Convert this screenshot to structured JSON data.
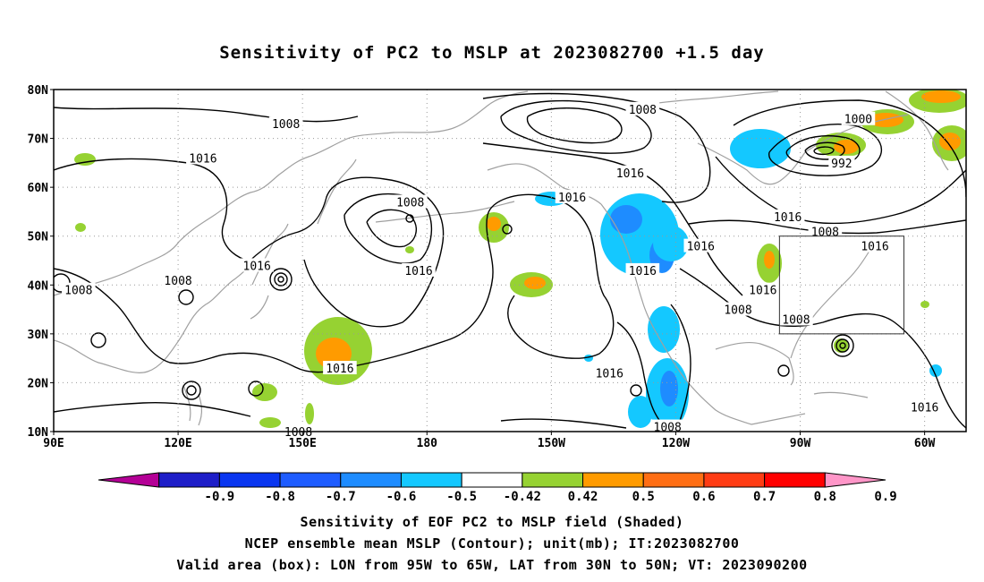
{
  "title": "Sensitivity of PC2 to MSLP at 2023082700 +1.5 day",
  "map": {
    "lat_ticks": [
      "80N",
      "70N",
      "60N",
      "50N",
      "40N",
      "30N",
      "20N",
      "10N"
    ],
    "lon_ticks": [
      "90E",
      "120E",
      "150E",
      "180",
      "150W",
      "120W",
      "90W",
      "60W"
    ],
    "lon_range": [
      90,
      310
    ],
    "lat_range": [
      10,
      80
    ],
    "grid": "dotted",
    "valid_box": {
      "lon": [
        265,
        295
      ],
      "lat": [
        30,
        50
      ]
    },
    "contour_labels": [
      {
        "text": "1008",
        "lon": 146,
        "lat": 73
      },
      {
        "text": "1016",
        "lon": 126,
        "lat": 66
      },
      {
        "text": "1008",
        "lon": 232,
        "lat": 76
      },
      {
        "text": "1000",
        "lon": 284,
        "lat": 74
      },
      {
        "text": "992",
        "lon": 280,
        "lat": 65
      },
      {
        "text": "1016",
        "lon": 229,
        "lat": 63
      },
      {
        "text": "1016",
        "lon": 215,
        "lat": 58
      },
      {
        "text": "1008",
        "lon": 176,
        "lat": 57
      },
      {
        "text": "1016",
        "lon": 267,
        "lat": 54
      },
      {
        "text": "1008",
        "lon": 276,
        "lat": 51
      },
      {
        "text": "1016",
        "lon": 288,
        "lat": 48
      },
      {
        "text": "1016",
        "lon": 139,
        "lat": 44
      },
      {
        "text": "1008",
        "lon": 120,
        "lat": 41
      },
      {
        "text": "1008",
        "lon": 96,
        "lat": 39
      },
      {
        "text": "1016",
        "lon": 178,
        "lat": 43
      },
      {
        "text": "1016",
        "lon": 246,
        "lat": 48
      },
      {
        "text": "1016",
        "lon": 232,
        "lat": 43
      },
      {
        "text": "1016",
        "lon": 261,
        "lat": 39
      },
      {
        "text": "1008",
        "lon": 255,
        "lat": 35
      },
      {
        "text": "1008",
        "lon": 269,
        "lat": 33
      },
      {
        "text": "1016",
        "lon": 159,
        "lat": 23
      },
      {
        "text": "1016",
        "lon": 224,
        "lat": 22
      },
      {
        "text": "1008",
        "lon": 238,
        "lat": 11
      },
      {
        "text": "1008",
        "lon": 149,
        "lat": 10
      },
      {
        "text": "1016",
        "lon": 300,
        "lat": 15
      }
    ],
    "colors": {
      "contour": "#000000",
      "coast": "#a0a0a0",
      "grid": "#999999"
    }
  },
  "colorbar": {
    "labels": [
      "-0.9",
      "-0.8",
      "-0.7",
      "-0.6",
      "-0.5",
      "-0.42",
      "0.42",
      "0.5",
      "0.6",
      "0.7",
      "0.8",
      "0.9"
    ],
    "colors": [
      "#b40096",
      "#1e1ec8",
      "#0a36f0",
      "#1e5cff",
      "#1e8cff",
      "#14c8ff",
      "#ffffff",
      "#96d232",
      "#ff9b00",
      "#ff6e14",
      "#ff3c14",
      "#ff0000",
      "#ff96c8"
    ]
  },
  "captions": [
    "Sensitivity of EOF PC2 to MSLP field (Shaded)",
    "NCEP ensemble mean MSLP (Contour); unit(mb); IT:2023082700",
    "Valid area (box): LON from 95W to 65W, LAT from 30N to 50N; VT: 2023090200"
  ]
}
